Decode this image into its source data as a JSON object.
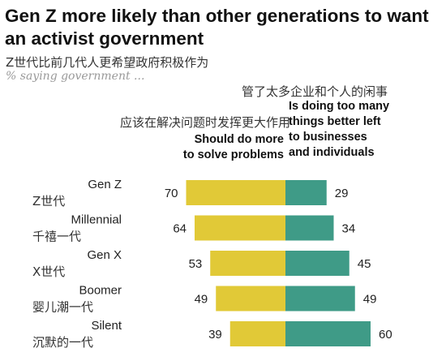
{
  "title": "Gen Z more likely than other generations to want an activist government",
  "subtitle_cn": "Z世代比前几代人更希望政府积极作为",
  "subtitle_en": "% saying government ...",
  "headers": {
    "left_cn": "应该在解决问题时发挥更大作用",
    "left_en": [
      "Should do more",
      "to solve problems"
    ],
    "right_cn": "管了太多企业和个人的闲事",
    "right_en": [
      "Is doing too many",
      "things better left",
      "to businesses",
      "and individuals"
    ]
  },
  "colors": {
    "should_do_more": "#e1c937",
    "doing_too_many": "#3f9b87"
  },
  "chart_data": {
    "type": "bar",
    "orientation": "horizontal-diverging",
    "categories": [
      "Gen Z",
      "Millennial",
      "Gen X",
      "Boomer",
      "Silent"
    ],
    "categories_cn": [
      "Z世代",
      "千禧一代",
      "X世代",
      "婴儿潮一代",
      "沉默的一代"
    ],
    "series": [
      {
        "name": "Should do more to solve problems",
        "values": [
          70,
          64,
          53,
          49,
          39
        ]
      },
      {
        "name": "Is doing too many things better left to businesses and individuals",
        "values": [
          29,
          34,
          45,
          49,
          60
        ]
      }
    ]
  }
}
